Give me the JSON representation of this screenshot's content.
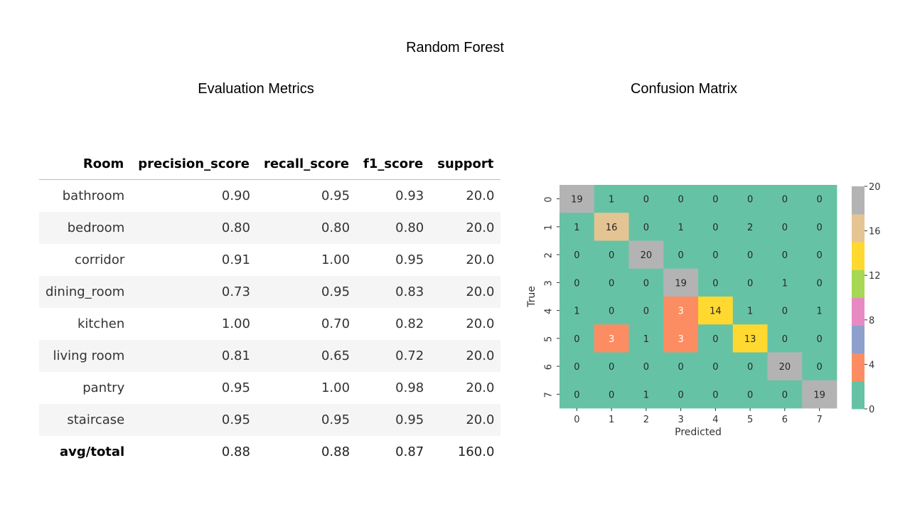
{
  "title": "Random Forest",
  "metrics_panel": {
    "title": "Evaluation Metrics",
    "columns": [
      "Room",
      "precision_score",
      "recall_score",
      "f1_score",
      "support"
    ],
    "rows": [
      [
        "bathroom",
        "0.90",
        "0.95",
        "0.93",
        "20.0"
      ],
      [
        "bedroom",
        "0.80",
        "0.80",
        "0.80",
        "20.0"
      ],
      [
        "corridor",
        "0.91",
        "1.00",
        "0.95",
        "20.0"
      ],
      [
        "dining_room",
        "0.73",
        "0.95",
        "0.83",
        "20.0"
      ],
      [
        "kitchen",
        "1.00",
        "0.70",
        "0.82",
        "20.0"
      ],
      [
        "living room",
        "0.81",
        "0.65",
        "0.72",
        "20.0"
      ],
      [
        "pantry",
        "0.95",
        "1.00",
        "0.98",
        "20.0"
      ],
      [
        "staircase",
        "0.95",
        "0.95",
        "0.95",
        "20.0"
      ],
      [
        "avg/total",
        "0.88",
        "0.88",
        "0.87",
        "160.0"
      ]
    ]
  },
  "chart_data": {
    "type": "heatmap",
    "title": "Confusion Matrix",
    "xlabel": "Predicted",
    "ylabel": "True",
    "x_categories": [
      "0",
      "1",
      "2",
      "3",
      "4",
      "5",
      "6",
      "7"
    ],
    "y_categories": [
      "0",
      "1",
      "2",
      "3",
      "4",
      "5",
      "6",
      "7"
    ],
    "values": [
      [
        19,
        1,
        0,
        0,
        0,
        0,
        0,
        0
      ],
      [
        1,
        16,
        0,
        1,
        0,
        2,
        0,
        0
      ],
      [
        0,
        0,
        20,
        0,
        0,
        0,
        0,
        0
      ],
      [
        0,
        0,
        0,
        19,
        0,
        0,
        1,
        0
      ],
      [
        1,
        0,
        0,
        3,
        14,
        1,
        0,
        1
      ],
      [
        0,
        3,
        1,
        3,
        0,
        13,
        0,
        0
      ],
      [
        0,
        0,
        0,
        0,
        0,
        0,
        20,
        0
      ],
      [
        0,
        0,
        1,
        0,
        0,
        0,
        0,
        19
      ]
    ],
    "colormap": "Set2",
    "colormap_colors": [
      "#66c2a5",
      "#fc8d62",
      "#8da0cb",
      "#e78ac3",
      "#a6d854",
      "#ffd92f",
      "#e5c494",
      "#b3b3b3"
    ],
    "vmin": 0,
    "vmax": 20,
    "colorbar_ticks": [
      "0",
      "4",
      "8",
      "12",
      "16",
      "20"
    ],
    "grid": false
  }
}
